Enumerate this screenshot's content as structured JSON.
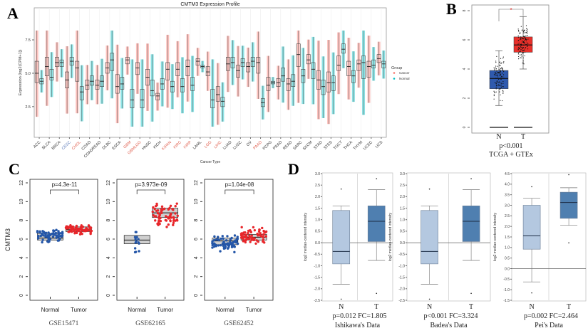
{
  "panels": {
    "A": "A",
    "B": "B",
    "C": "C",
    "D": "D"
  },
  "colors": {
    "cancer": "#F8766D",
    "normal": "#00BFC4",
    "label_red": "#E0604F",
    "label_blue": "#5A78B8",
    "tcga_normal": "#2F5AAE",
    "tcga_tumor": "#E8302A",
    "geo_normal": "#2456A8",
    "geo_tumor": "#E8262A",
    "onc_normal": "#B4C8E0",
    "onc_tumor": "#4F7FB0"
  },
  "chart_data": [
    {
      "panel": "A",
      "type": "box",
      "title": "CMTM3 Expression Profile",
      "xlabel": "Cancer Type",
      "ylabel": "Expression (log2(CPM+1))",
      "ylim": [
        0.2,
        9.9
      ],
      "yticks": [
        "2.5",
        "5.0",
        "7.5"
      ],
      "grid": "vertical",
      "legend": {
        "title": "Group",
        "entries": [
          "Cancer",
          "Normal"
        ],
        "placement": "right"
      },
      "categories": [
        {
          "name": "ACC",
          "color": "#333333"
        },
        {
          "name": "BLCA",
          "color": "#333333"
        },
        {
          "name": "BRCA",
          "color": "#333333"
        },
        {
          "name": "CESC",
          "color": "#5A78B8"
        },
        {
          "name": "CHOL",
          "color": "#E0604F"
        },
        {
          "name": "COAD",
          "color": "#333333"
        },
        {
          "name": "COADREAD",
          "color": "#333333"
        },
        {
          "name": "DLBC",
          "color": "#333333"
        },
        {
          "name": "ESCA",
          "color": "#333333"
        },
        {
          "name": "GBM",
          "color": "#E0604F"
        },
        {
          "name": "GBMLGG",
          "color": "#E0604F"
        },
        {
          "name": "HNSC",
          "color": "#333333"
        },
        {
          "name": "KICH",
          "color": "#333333"
        },
        {
          "name": "KIPAN",
          "color": "#E0604F"
        },
        {
          "name": "KIRC",
          "color": "#E0604F"
        },
        {
          "name": "KIRP",
          "color": "#E0604F"
        },
        {
          "name": "LAML",
          "color": "#333333"
        },
        {
          "name": "LGG",
          "color": "#E0604F"
        },
        {
          "name": "LIHC",
          "color": "#E0604F"
        },
        {
          "name": "LUAD",
          "color": "#333333"
        },
        {
          "name": "LUSC",
          "color": "#333333"
        },
        {
          "name": "OV",
          "color": "#333333"
        },
        {
          "name": "PAAD",
          "color": "#E0604F"
        },
        {
          "name": "PCPG",
          "color": "#333333"
        },
        {
          "name": "PRAD",
          "color": "#333333"
        },
        {
          "name": "READ",
          "color": "#333333"
        },
        {
          "name": "SARC",
          "color": "#333333"
        },
        {
          "name": "SKCM",
          "color": "#333333"
        },
        {
          "name": "STAD",
          "color": "#333333"
        },
        {
          "name": "STES",
          "color": "#333333"
        },
        {
          "name": "TGCT",
          "color": "#333333"
        },
        {
          "name": "THCA",
          "color": "#333333"
        },
        {
          "name": "THYM",
          "color": "#333333"
        },
        {
          "name": "UCEC",
          "color": "#333333"
        },
        {
          "name": "UCS",
          "color": "#333333"
        }
      ],
      "series": [
        {
          "name": "Cancer",
          "boxes_q1_median_q3": [
            [
              4.3,
              5.0,
              5.9
            ],
            [
              4.8,
              5.5,
              6.2
            ],
            [
              5.5,
              5.8,
              6.2
            ],
            [
              3.9,
              4.5,
              5.1
            ],
            [
              4.4,
              5.4,
              5.9
            ],
            [
              3.8,
              4.1,
              4.5
            ],
            [
              3.8,
              4.1,
              4.5
            ],
            [
              5.0,
              5.4,
              5.8
            ],
            [
              3.5,
              4.0,
              4.9
            ],
            [
              5.7,
              6.0,
              6.2
            ],
            [
              4.9,
              5.4,
              5.8
            ],
            [
              4.1,
              4.7,
              5.3
            ],
            [
              3.0,
              3.3,
              3.5
            ],
            [
              4.5,
              5.3,
              5.8
            ],
            [
              4.8,
              5.3,
              5.8
            ],
            [
              4.8,
              5.5,
              6.0
            ],
            [
              5.6,
              5.9,
              6.1
            ],
            [
              4.8,
              5.1,
              5.5
            ],
            [
              2.9,
              3.4,
              4.0
            ],
            [
              5.2,
              5.7,
              6.2
            ],
            [
              4.7,
              5.2,
              5.6
            ],
            [
              5.1,
              5.5,
              5.8
            ],
            [
              5.0,
              5.8,
              6.2
            ],
            [
              3.7,
              4.1,
              4.7
            ],
            [
              4.0,
              4.3,
              4.6
            ],
            [
              3.7,
              4.2,
              4.6
            ],
            [
              5.5,
              6.4,
              7.2
            ],
            [
              5.7,
              6.0,
              6.4
            ],
            [
              3.8,
              4.5,
              5.2
            ],
            [
              3.6,
              4.3,
              5.1
            ],
            [
              5.2,
              5.6,
              6.3
            ],
            [
              4.8,
              5.5,
              5.9
            ],
            [
              5.2,
              5.7,
              6.0
            ],
            [
              4.7,
              5.5,
              5.9
            ],
            [
              5.8,
              6.1,
              6.4
            ]
          ]
        },
        {
          "name": "Normal",
          "boxes_q1_median_q3": [
            [
              4.2,
              4.4,
              4.6
            ],
            [
              4.5,
              4.7,
              5.3
            ],
            [
              5.5,
              5.8,
              6.0
            ],
            [
              5.6,
              5.9,
              6.2
            ],
            [
              3.0,
              3.6,
              4.0
            ],
            [
              4.1,
              4.4,
              4.8
            ],
            [
              4.0,
              4.4,
              4.8
            ],
            [
              5.2,
              6.0,
              6.5
            ],
            [
              3.8,
              4.2,
              4.7
            ],
            [
              2.4,
              3.0,
              3.8
            ],
            [
              2.4,
              3.0,
              3.8
            ],
            [
              3.3,
              3.7,
              4.5
            ],
            [
              3.8,
              4.2,
              4.6
            ],
            [
              3.6,
              4.0,
              4.4
            ],
            [
              3.6,
              4.0,
              4.6
            ],
            [
              3.7,
              4.1,
              4.7
            ],
            [
              5.4,
              5.5,
              5.6
            ],
            [
              2.4,
              3.0,
              3.8
            ],
            [
              2.5,
              2.9,
              3.2
            ],
            [
              5.4,
              5.8,
              6.2
            ],
            [
              5.5,
              5.8,
              6.1
            ],
            [
              5.5,
              5.9,
              6.2
            ],
            [
              2.5,
              2.8,
              3.1
            ],
            [
              4.2,
              4.3,
              4.4
            ],
            [
              4.4,
              4.8,
              5.4
            ],
            [
              4.0,
              4.4,
              4.9
            ],
            [
              4.3,
              4.8,
              5.3
            ],
            [
              4.6,
              5.3,
              5.8
            ],
            [
              3.4,
              4.0,
              4.5
            ],
            [
              3.7,
              4.3,
              4.8
            ],
            [
              6.5,
              6.8,
              7.2
            ],
            [
              4.3,
              4.8,
              5.2
            ],
            [
              4.6,
              5.8,
              6.3
            ],
            [
              5.4,
              5.6,
              6.0
            ],
            [
              5.4,
              5.7,
              5.9
            ]
          ]
        }
      ]
    },
    {
      "panel": "B",
      "type": "box",
      "ylim": [
        0,
        8
      ],
      "yticks": [
        "0",
        "2",
        "4",
        "6",
        "8"
      ],
      "categories": [
        "N",
        "T"
      ],
      "boxes": [
        {
          "group": "N",
          "whisker_low": 1.5,
          "q1": 2.65,
          "median": 3.35,
          "q3": 3.9,
          "whisker_high": 5.25
        },
        {
          "group": "T",
          "whisker_low": 4.0,
          "q1": 5.15,
          "median": 5.65,
          "q3": 6.2,
          "whisker_high": 7.6
        }
      ],
      "significance": "*",
      "pvalue": "p<0.001",
      "caption": "TCGA + GTEx"
    },
    {
      "panel": "C",
      "type": "box",
      "ylabel": "CMTM3",
      "ylim": [
        0,
        12
      ],
      "yticks": [
        "0",
        "2",
        "4",
        "6",
        "8",
        "10",
        "12"
      ],
      "plots": [
        {
          "dataset": "GSE15471",
          "pvalue": "p=4.3e-11",
          "categories": [
            "Normal",
            "Tumor"
          ],
          "boxes": [
            {
              "q1": 5.9,
              "median": 6.1,
              "q3": 6.6,
              "min": 5.5,
              "max": 7.2
            },
            {
              "q1": 6.8,
              "median": 7.0,
              "q3": 7.3,
              "min": 6.4,
              "max": 7.6
            }
          ]
        },
        {
          "dataset": "GSE62165",
          "pvalue": "p=3.973e-09",
          "categories": [
            "Normal",
            "Tumor"
          ],
          "boxes": [
            {
              "q1": 5.5,
              "median": 5.9,
              "q3": 6.4,
              "min": 4.2,
              "max": 7.1
            },
            {
              "q1": 8.3,
              "median": 8.8,
              "q3": 9.3,
              "min": 7.0,
              "max": 10.1
            }
          ]
        },
        {
          "dataset": "GSE62452",
          "pvalue": "p=1.04e-08",
          "categories": [
            "Normal",
            "Tumor"
          ],
          "boxes": [
            {
              "q1": 5.4,
              "median": 5.8,
              "q3": 6.1,
              "min": 4.4,
              "max": 6.6
            },
            {
              "q1": 5.9,
              "median": 6.2,
              "q3": 6.5,
              "min": 5.3,
              "max": 7.4
            }
          ]
        }
      ]
    },
    {
      "panel": "D",
      "type": "box",
      "ylabel": "log2 median-centered intensity",
      "plots": [
        {
          "dataset": "Ishikawa's Data",
          "stats": "p=0.012  FC=1.805",
          "ylim": [
            -2.5,
            3.0
          ],
          "yticks": [
            "-2.5",
            "-2.0",
            "-1.5",
            "-1.0",
            "-0.5",
            "0.0",
            "0.5",
            "1.0",
            "1.5",
            "2.0",
            "2.5",
            "3.0"
          ],
          "categories": [
            "N",
            "T"
          ],
          "boxes": [
            {
              "whisker_low": -1.8,
              "q1": -0.92,
              "median": -0.38,
              "q3": 1.4,
              "whisker_high": 1.6,
              "outliers": [
                2.33,
                -2.45
              ]
            },
            {
              "whisker_low": -0.77,
              "q1": 0.05,
              "median": 0.93,
              "q3": 1.6,
              "whisker_high": 2.3,
              "outliers": [
                2.78,
                -2.2
              ]
            }
          ]
        },
        {
          "dataset": "Badea's Data",
          "stats": "p<0.001  FC=3.324",
          "ylim": [
            -2.5,
            3.0
          ],
          "yticks": [
            "-2.5",
            "-2.0",
            "-1.5",
            "-1.0",
            "-0.5",
            "0.0",
            "0.5",
            "1.0",
            "1.5",
            "2.0",
            "2.5",
            "3.0"
          ],
          "categories": [
            "N",
            "T"
          ],
          "boxes": [
            {
              "whisker_low": -1.8,
              "q1": -0.92,
              "median": -0.38,
              "q3": 1.4,
              "whisker_high": 1.6,
              "outliers": [
                2.33,
                -2.45
              ]
            },
            {
              "whisker_low": -0.77,
              "q1": 0.05,
              "median": 0.93,
              "q3": 1.6,
              "whisker_high": 2.3,
              "outliers": [
                2.78,
                -2.2
              ]
            }
          ]
        },
        {
          "dataset": "Pei's Data",
          "stats": "p=0.002  FC=2.464",
          "ylim": [
            -1.5,
            4.5
          ],
          "yticks": [
            "-1.5",
            "-1.0",
            "-0.5",
            "0.0",
            "0.5",
            "1.0",
            "1.5",
            "2.0",
            "2.5",
            "3.0",
            "3.5",
            "4.0",
            "4.5"
          ],
          "categories": [
            "N",
            "T"
          ],
          "boxes": [
            {
              "whisker_low": -0.63,
              "q1": 0.92,
              "median": 1.55,
              "q3": 3.0,
              "whisker_high": 3.33,
              "outliers": [
                3.88,
                -1.15
              ]
            },
            {
              "whisker_low": 2.05,
              "q1": 2.38,
              "median": 3.13,
              "q3": 3.62,
              "whisker_high": 3.83,
              "outliers": [
                4.45,
                1.22
              ]
            }
          ]
        }
      ]
    }
  ]
}
